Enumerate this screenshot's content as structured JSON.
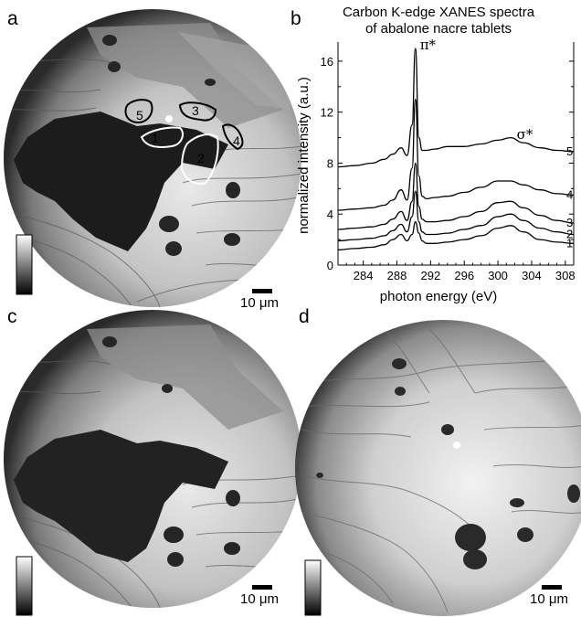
{
  "panels": {
    "a": "a",
    "b": "b",
    "c": "c",
    "d": "d"
  },
  "region_labels": [
    "1",
    "2",
    "3",
    "4",
    "5"
  ],
  "scalebars": {
    "a": "10 μm",
    "c": "10 μm",
    "d": "10 μm"
  },
  "colors": {
    "outline_white": "#ffffff",
    "outline_black": "#000000",
    "axis": "#000000"
  },
  "chart_data": {
    "type": "line",
    "title": "Carbon K-edge XANES spectra\nof abalone nacre tablets",
    "title_lines": [
      "Carbon K-edge XANES spectra",
      "of abalone nacre tablets"
    ],
    "xlabel": "photon energy (eV)",
    "ylabel": "normalized intensity (a.u.)",
    "xlim": [
      281,
      309
    ],
    "ylim": [
      0,
      17.5
    ],
    "xticks": [
      284,
      288,
      292,
      296,
      300,
      304,
      308
    ],
    "yticks": [
      0,
      4,
      8,
      12,
      16
    ],
    "annotations": [
      {
        "text": "π*",
        "x": 290.3,
        "y": 17.2
      },
      {
        "text": "σ*",
        "x": 301.8,
        "y": 10.2
      }
    ],
    "series": [
      {
        "name": "1",
        "x": [
          281,
          283,
          285,
          286.5,
          287.5,
          288.5,
          289.2,
          289.8,
          290.2,
          290.6,
          291,
          291.5,
          292.5,
          294,
          296,
          298,
          300,
          301.5,
          303,
          305,
          307,
          309
        ],
        "y": [
          1.2,
          1.3,
          1.4,
          1.6,
          2.0,
          2.4,
          1.9,
          2.4,
          3.4,
          2.5,
          1.9,
          1.7,
          1.7,
          1.8,
          2.0,
          2.3,
          2.9,
          3.1,
          2.6,
          2.0,
          1.8,
          1.7
        ]
      },
      {
        "name": "2",
        "x": [
          281,
          283,
          285,
          286.5,
          287.5,
          288.5,
          289.2,
          289.8,
          290.2,
          290.6,
          291,
          291.5,
          292.5,
          294,
          296,
          298,
          300,
          301.5,
          303,
          305,
          307,
          309
        ],
        "y": [
          1.9,
          2.0,
          2.1,
          2.3,
          2.7,
          3.2,
          2.6,
          3.8,
          5.8,
          3.4,
          2.6,
          2.4,
          2.4,
          2.5,
          2.8,
          3.1,
          3.8,
          4.0,
          3.5,
          2.9,
          2.6,
          2.4
        ]
      },
      {
        "name": "3",
        "x": [
          281,
          283,
          285,
          286.5,
          287.5,
          288.5,
          289.2,
          289.8,
          290.2,
          290.6,
          291,
          291.5,
          292.5,
          294,
          296,
          298,
          300,
          301.5,
          303,
          305,
          307,
          309
        ],
        "y": [
          2.8,
          2.9,
          3.0,
          3.2,
          3.6,
          4.2,
          3.5,
          5.0,
          8.0,
          4.6,
          3.6,
          3.4,
          3.4,
          3.5,
          3.8,
          4.2,
          4.9,
          5.0,
          4.5,
          3.9,
          3.5,
          3.3
        ]
      },
      {
        "name": "4",
        "x": [
          281,
          283,
          285,
          286.5,
          287.5,
          288.5,
          289.2,
          289.8,
          290.2,
          290.6,
          291,
          291.5,
          292.5,
          294,
          296,
          298,
          300,
          301.5,
          303,
          305,
          307,
          309
        ],
        "y": [
          4.3,
          4.4,
          4.5,
          4.7,
          5.1,
          5.9,
          5.1,
          7.6,
          13.0,
          7.0,
          5.4,
          5.2,
          5.3,
          5.4,
          5.7,
          6.1,
          6.6,
          6.6,
          6.3,
          5.9,
          5.6,
          5.5
        ]
      },
      {
        "name": "5",
        "x": [
          281,
          283,
          285,
          286.5,
          287.5,
          288.5,
          289.2,
          289.8,
          290.2,
          290.6,
          291,
          291.5,
          292.5,
          294,
          296,
          298,
          300,
          301.5,
          303,
          305,
          307,
          309
        ],
        "y": [
          7.7,
          7.8,
          8.0,
          8.3,
          8.7,
          9.2,
          8.6,
          11.0,
          17.0,
          10.0,
          9.0,
          9.0,
          9.1,
          9.3,
          9.3,
          9.5,
          9.8,
          10.0,
          9.6,
          9.2,
          9.0,
          8.9
        ]
      }
    ]
  }
}
